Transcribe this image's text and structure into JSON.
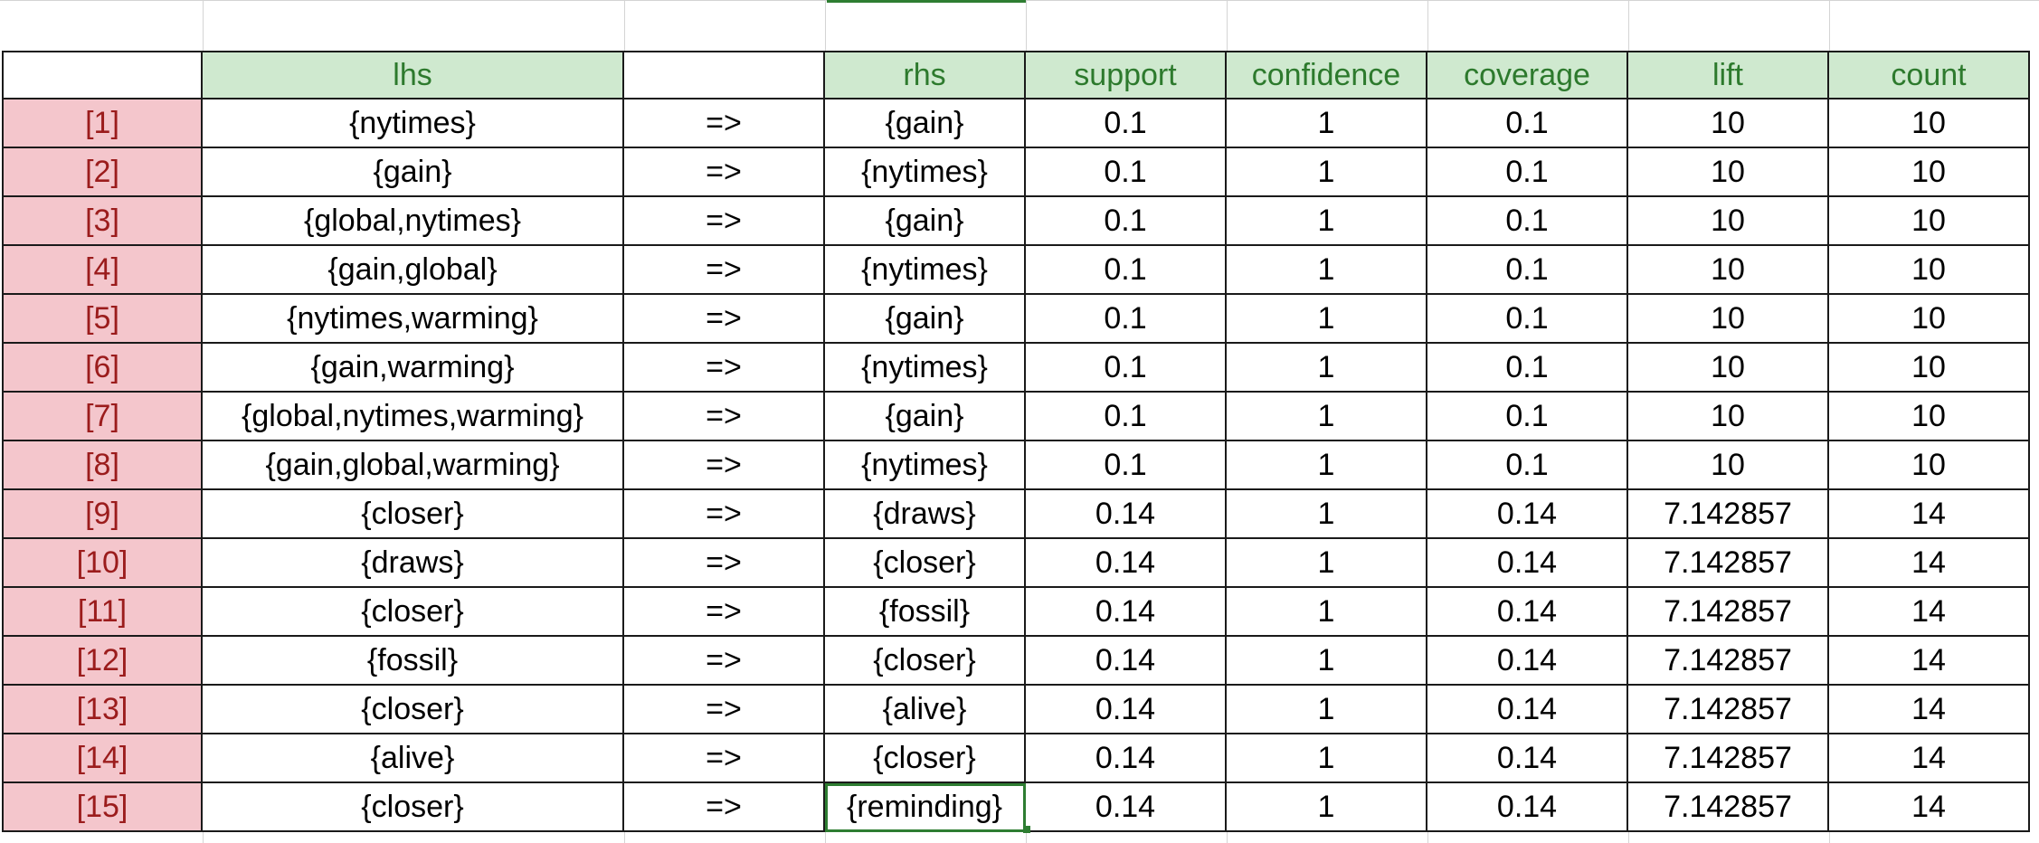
{
  "sheet": {
    "headers": [
      "",
      "lhs",
      "",
      "rhs",
      "support",
      "confidence",
      "coverage",
      "lift",
      "count"
    ],
    "rows": [
      [
        "[1]",
        "{nytimes}",
        "=>",
        "{gain}",
        "0.1",
        "1",
        "0.1",
        "10",
        "10"
      ],
      [
        "[2]",
        "{gain}",
        "=>",
        "{nytimes}",
        "0.1",
        "1",
        "0.1",
        "10",
        "10"
      ],
      [
        "[3]",
        "{global,nytimes}",
        "=>",
        "{gain}",
        "0.1",
        "1",
        "0.1",
        "10",
        "10"
      ],
      [
        "[4]",
        "{gain,global}",
        "=>",
        "{nytimes}",
        "0.1",
        "1",
        "0.1",
        "10",
        "10"
      ],
      [
        "[5]",
        "{nytimes,warming}",
        "=>",
        "{gain}",
        "0.1",
        "1",
        "0.1",
        "10",
        "10"
      ],
      [
        "[6]",
        "{gain,warming}",
        "=>",
        "{nytimes}",
        "0.1",
        "1",
        "0.1",
        "10",
        "10"
      ],
      [
        "[7]",
        "{global,nytimes,warming}",
        "=>",
        "{gain}",
        "0.1",
        "1",
        "0.1",
        "10",
        "10"
      ],
      [
        "[8]",
        "{gain,global,warming}",
        "=>",
        "{nytimes}",
        "0.1",
        "1",
        "0.1",
        "10",
        "10"
      ],
      [
        "[9]",
        "{closer}",
        "=>",
        "{draws}",
        "0.14",
        "1",
        "0.14",
        "7.142857",
        "14"
      ],
      [
        "[10]",
        "{draws}",
        "=>",
        "{closer}",
        "0.14",
        "1",
        "0.14",
        "7.142857",
        "14"
      ],
      [
        "[11]",
        "{closer}",
        "=>",
        "{fossil}",
        "0.14",
        "1",
        "0.14",
        "7.142857",
        "14"
      ],
      [
        "[12]",
        "{fossil}",
        "=>",
        "{closer}",
        "0.14",
        "1",
        "0.14",
        "7.142857",
        "14"
      ],
      [
        "[13]",
        "{closer}",
        "=>",
        "{alive}",
        "0.14",
        "1",
        "0.14",
        "7.142857",
        "14"
      ],
      [
        "[14]",
        "{alive}",
        "=>",
        "{closer}",
        "0.14",
        "1",
        "0.14",
        "7.142857",
        "14"
      ],
      [
        "[15]",
        "{closer}",
        "=>",
        "{reminding}",
        "0.14",
        "1",
        "0.14",
        "7.142857",
        "14"
      ]
    ],
    "colors": {
      "header_fill": "#cfe9cf",
      "header_text": "#2d7a2d",
      "index_fill": "#f4c6cc",
      "index_text": "#9b1c1c",
      "selection": "#2e7d32"
    }
  }
}
